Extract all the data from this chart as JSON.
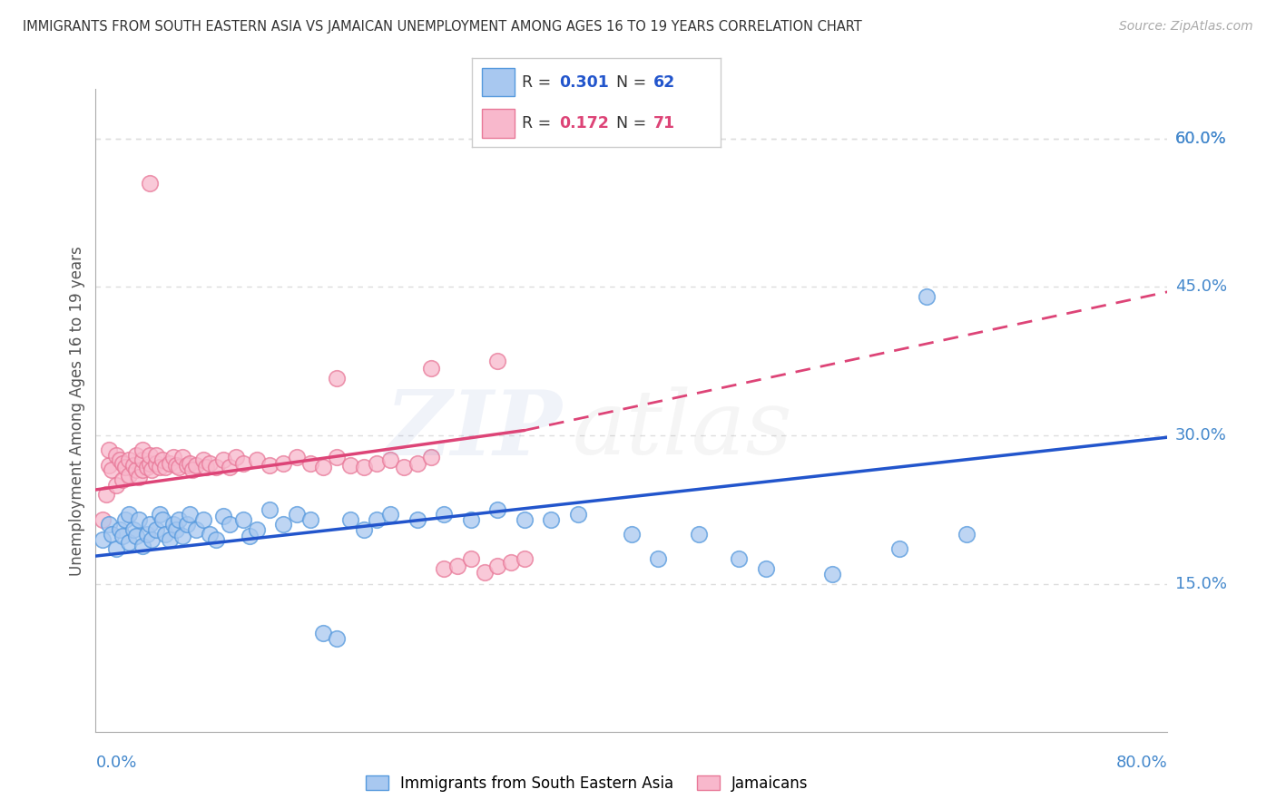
{
  "title": "IMMIGRANTS FROM SOUTH EASTERN ASIA VS JAMAICAN UNEMPLOYMENT AMONG AGES 16 TO 19 YEARS CORRELATION CHART",
  "source": "Source: ZipAtlas.com",
  "ylabel": "Unemployment Among Ages 16 to 19 years",
  "blue_R": "0.301",
  "blue_N": "62",
  "pink_R": "0.172",
  "pink_N": "71",
  "blue_label": "Immigrants from South Eastern Asia",
  "pink_label": "Jamaicans",
  "ytick_values": [
    0.15,
    0.3,
    0.45,
    0.6
  ],
  "ytick_labels": [
    "15.0%",
    "30.0%",
    "45.0%",
    "60.0%"
  ],
  "xlim": [
    0.0,
    0.8
  ],
  "ylim": [
    0.0,
    0.65
  ],
  "blue_fill": "#a8c8f0",
  "blue_edge": "#5599dd",
  "pink_fill": "#f8b8cc",
  "pink_edge": "#e87898",
  "blue_line": "#2255cc",
  "pink_line": "#dd4477",
  "label_color": "#4488cc",
  "title_color": "#333333",
  "source_color": "#aaaaaa",
  "grid_color": "#dddddd",
  "blue_trend": [
    0.0,
    0.178,
    0.8,
    0.298
  ],
  "pink_trend_solid": [
    0.0,
    0.245,
    0.32,
    0.305
  ],
  "pink_trend_dash": [
    0.32,
    0.305,
    0.8,
    0.445
  ],
  "blue_x": [
    0.005,
    0.01,
    0.012,
    0.015,
    0.018,
    0.02,
    0.022,
    0.025,
    0.025,
    0.028,
    0.03,
    0.032,
    0.035,
    0.038,
    0.04,
    0.042,
    0.045,
    0.048,
    0.05,
    0.052,
    0.055,
    0.058,
    0.06,
    0.062,
    0.065,
    0.068,
    0.07,
    0.075,
    0.08,
    0.085,
    0.09,
    0.095,
    0.1,
    0.11,
    0.115,
    0.12,
    0.13,
    0.14,
    0.15,
    0.16,
    0.17,
    0.18,
    0.19,
    0.2,
    0.21,
    0.22,
    0.24,
    0.26,
    0.28,
    0.3,
    0.32,
    0.34,
    0.36,
    0.4,
    0.42,
    0.45,
    0.48,
    0.5,
    0.55,
    0.6,
    0.62,
    0.65
  ],
  "blue_y": [
    0.195,
    0.21,
    0.2,
    0.185,
    0.205,
    0.198,
    0.215,
    0.192,
    0.22,
    0.205,
    0.198,
    0.215,
    0.188,
    0.2,
    0.21,
    0.195,
    0.205,
    0.22,
    0.215,
    0.2,
    0.195,
    0.21,
    0.205,
    0.215,
    0.198,
    0.21,
    0.22,
    0.205,
    0.215,
    0.2,
    0.195,
    0.218,
    0.21,
    0.215,
    0.198,
    0.205,
    0.225,
    0.21,
    0.22,
    0.215,
    0.1,
    0.095,
    0.215,
    0.205,
    0.215,
    0.22,
    0.215,
    0.22,
    0.215,
    0.225,
    0.215,
    0.215,
    0.22,
    0.2,
    0.175,
    0.2,
    0.175,
    0.165,
    0.16,
    0.185,
    0.44,
    0.2
  ],
  "pink_x": [
    0.005,
    0.008,
    0.01,
    0.01,
    0.012,
    0.015,
    0.015,
    0.018,
    0.02,
    0.02,
    0.022,
    0.025,
    0.025,
    0.028,
    0.03,
    0.03,
    0.032,
    0.035,
    0.035,
    0.035,
    0.038,
    0.04,
    0.04,
    0.042,
    0.045,
    0.045,
    0.048,
    0.05,
    0.052,
    0.055,
    0.058,
    0.06,
    0.062,
    0.065,
    0.068,
    0.07,
    0.072,
    0.075,
    0.08,
    0.082,
    0.085,
    0.09,
    0.095,
    0.1,
    0.105,
    0.11,
    0.12,
    0.13,
    0.14,
    0.15,
    0.16,
    0.17,
    0.18,
    0.19,
    0.2,
    0.21,
    0.22,
    0.23,
    0.24,
    0.25,
    0.26,
    0.27,
    0.28,
    0.29,
    0.3,
    0.31,
    0.32,
    0.18,
    0.25,
    0.3,
    0.04
  ],
  "pink_y": [
    0.215,
    0.24,
    0.27,
    0.285,
    0.265,
    0.25,
    0.28,
    0.275,
    0.255,
    0.272,
    0.268,
    0.275,
    0.26,
    0.27,
    0.265,
    0.28,
    0.258,
    0.265,
    0.275,
    0.285,
    0.268,
    0.272,
    0.28,
    0.265,
    0.272,
    0.28,
    0.268,
    0.275,
    0.268,
    0.272,
    0.278,
    0.27,
    0.268,
    0.278,
    0.27,
    0.272,
    0.265,
    0.27,
    0.275,
    0.268,
    0.272,
    0.268,
    0.275,
    0.268,
    0.278,
    0.272,
    0.275,
    0.27,
    0.272,
    0.278,
    0.272,
    0.268,
    0.278,
    0.27,
    0.268,
    0.272,
    0.275,
    0.268,
    0.272,
    0.278,
    0.165,
    0.168,
    0.175,
    0.162,
    0.168,
    0.172,
    0.175,
    0.358,
    0.368,
    0.375,
    0.555
  ]
}
